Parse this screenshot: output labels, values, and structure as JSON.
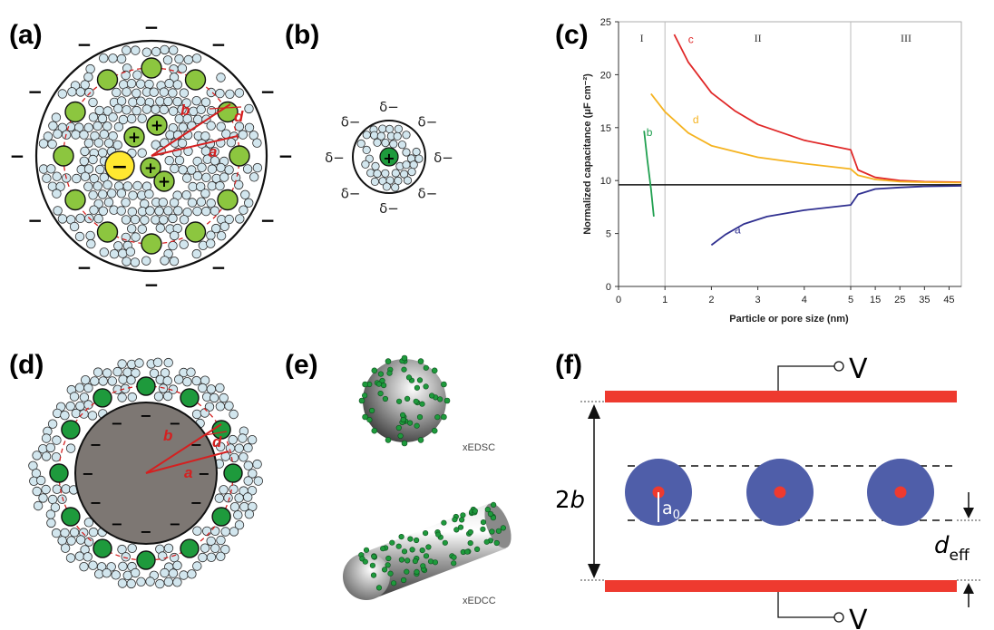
{
  "panels": {
    "a": {
      "label": "(a)",
      "outer_sign": "−",
      "inner_sign": "−",
      "ion_sign": "+",
      "radius_labels": {
        "b": "b",
        "d": "d",
        "a": "a"
      }
    },
    "b": {
      "label": "(b)",
      "delta": "δ−",
      "ion_sign": "+"
    },
    "c": {
      "label": "(c)"
    },
    "d": {
      "label": "(d)",
      "core_sign": "−",
      "ion_sign": "+",
      "radius_labels": {
        "b": "b",
        "d": "d",
        "a": "a"
      }
    },
    "e": {
      "label": "(e)",
      "sphere_caption": "xEDSC",
      "cylinder_caption": "xEDCC"
    },
    "f": {
      "label": "(f)",
      "voltage_top": "V",
      "voltage_bottom": "V",
      "gap_label_num": "2",
      "gap_label_var": "b",
      "radius_label_var": "a",
      "radius_label_sub": "0",
      "deff_var": "d",
      "deff_sub": "eff"
    }
  },
  "colors": {
    "ion_green": "#8cc63f",
    "ion_green_dark": "#1e9a3c",
    "center_yellow": "#ffe830",
    "solvent_blue": "#d2e6ee",
    "electrode_red": "#ee3a2f",
    "pore_blue": "#4f5ea9",
    "core_gray": "#7d7773",
    "curve_a": "#303090",
    "curve_b": "#20a050",
    "curve_c": "#e02828",
    "curve_d": "#f5b320"
  },
  "chart_data": {
    "type": "line",
    "title": "",
    "xlabel": "Particle or pore size (nm)",
    "ylabel": "Normalized capacitance (μF cm⁻²)",
    "x_ticks": [
      "0",
      "1",
      "2",
      "3",
      "4",
      "5",
      "15",
      "25",
      "35",
      "45"
    ],
    "y_ticks": [
      "0",
      "5",
      "10",
      "15",
      "20",
      "25"
    ],
    "ylim": [
      0,
      25
    ],
    "x_scale": "piecewise: linear 0–5 nm, then compressed 5–50 nm",
    "regions": [
      "I",
      "II",
      "III"
    ],
    "region_boundaries": [
      1,
      5
    ],
    "reference_line": 9.6,
    "series": [
      {
        "name": "a",
        "points": [
          [
            2.0,
            3.9
          ],
          [
            2.3,
            4.9
          ],
          [
            2.7,
            5.9
          ],
          [
            3.2,
            6.6
          ],
          [
            4.0,
            7.2
          ],
          [
            5.0,
            7.7
          ],
          [
            8,
            8.7
          ],
          [
            15,
            9.2
          ],
          [
            25,
            9.35
          ],
          [
            35,
            9.45
          ],
          [
            50,
            9.5
          ]
        ]
      },
      {
        "name": "b",
        "points": [
          [
            0.55,
            14.7
          ],
          [
            0.62,
            12.0
          ],
          [
            0.7,
            9.2
          ],
          [
            0.76,
            6.6
          ]
        ]
      },
      {
        "name": "c",
        "points": [
          [
            1.2,
            23.8
          ],
          [
            1.5,
            21.2
          ],
          [
            2.0,
            18.3
          ],
          [
            2.5,
            16.6
          ],
          [
            3.0,
            15.3
          ],
          [
            4.0,
            13.8
          ],
          [
            5.0,
            12.9
          ],
          [
            8,
            11.0
          ],
          [
            15,
            10.3
          ],
          [
            25,
            10.0
          ],
          [
            35,
            9.9
          ],
          [
            50,
            9.85
          ]
        ]
      },
      {
        "name": "d",
        "points": [
          [
            0.7,
            18.2
          ],
          [
            1.0,
            16.5
          ],
          [
            1.5,
            14.5
          ],
          [
            2.0,
            13.3
          ],
          [
            3.0,
            12.2
          ],
          [
            4.0,
            11.6
          ],
          [
            5.0,
            11.1
          ],
          [
            8,
            10.5
          ],
          [
            15,
            10.1
          ],
          [
            25,
            9.9
          ],
          [
            35,
            9.85
          ],
          [
            50,
            9.8
          ]
        ]
      }
    ],
    "series_label_positions": {
      "a": [
        2.5,
        5.0
      ],
      "b": [
        0.6,
        14.2
      ],
      "c": [
        1.5,
        23.0
      ],
      "d": [
        1.6,
        15.4
      ]
    },
    "grid": false,
    "legend": "inline labels"
  }
}
